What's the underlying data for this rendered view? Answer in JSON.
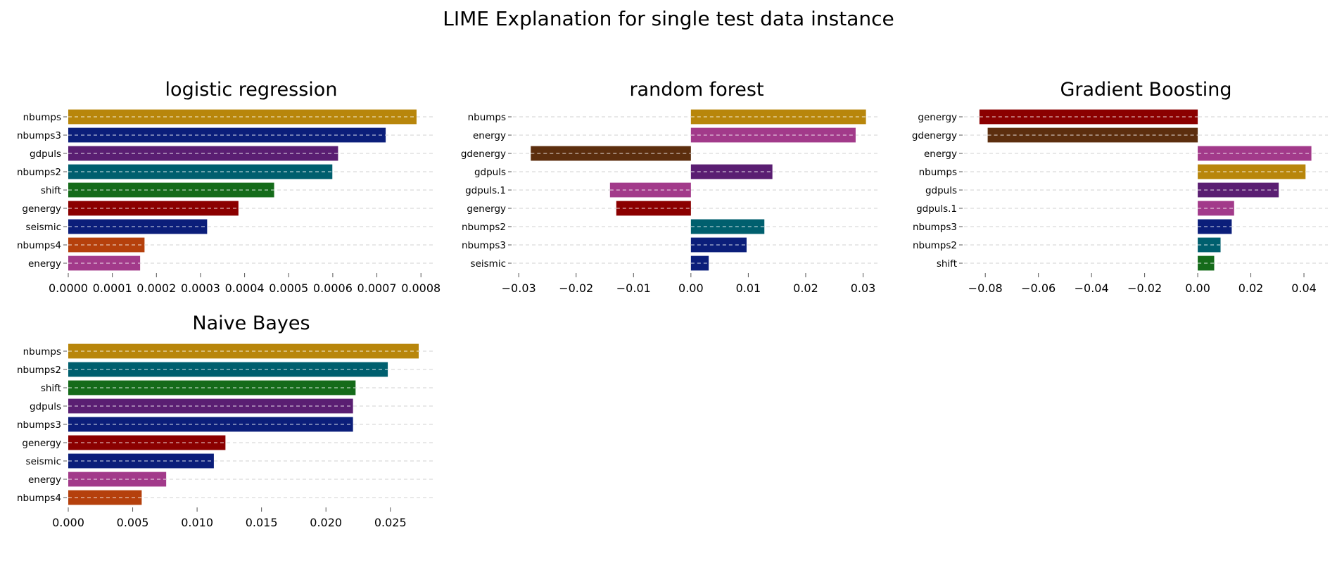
{
  "suptitle": "LIME Explanation for single test data instance",
  "chart_data": [
    {
      "type": "bar",
      "orientation": "horizontal",
      "title": "logistic regression",
      "categories": [
        "nbumps",
        "nbumps3",
        "gdpuls",
        "nbumps2",
        "shift",
        "genergy",
        "seismic",
        "nbumps4",
        "energy"
      ],
      "values": [
        0.00079,
        0.00072,
        0.000612,
        0.000599,
        0.000467,
        0.000386,
        0.000315,
        0.000173,
        0.000163
      ],
      "colors": [
        "#b8860b",
        "#0b1e7a",
        "#5a1e72",
        "#005f6e",
        "#156b1a",
        "#8b0000",
        "#0b1e7a",
        "#b5400c",
        "#a23a8a"
      ],
      "xlim": [
        0,
        0.00083
      ],
      "xticks": [
        0,
        0.0001,
        0.0002,
        0.0003,
        0.0004,
        0.0005,
        0.0006,
        0.0007,
        0.0008
      ],
      "xtick_labels": [
        "0.0000",
        "0.0001",
        "0.0002",
        "0.0003",
        "0.0004",
        "0.0005",
        "0.0006",
        "0.0007",
        "0.0008"
      ],
      "grid": "y-dashed"
    },
    {
      "type": "bar",
      "orientation": "horizontal",
      "title": "random forest",
      "categories": [
        "nbumps",
        "energy",
        "gdenergy",
        "gdpuls",
        "gdpuls.1",
        "genergy",
        "nbumps2",
        "nbumps3",
        "seismic"
      ],
      "values": [
        0.0305,
        0.0287,
        -0.0279,
        0.0142,
        -0.0141,
        -0.013,
        0.0128,
        0.0097,
        0.0031
      ],
      "colors": [
        "#b8860b",
        "#a23a8a",
        "#5c2e0e",
        "#5a1e72",
        "#a23a8a",
        "#8b0000",
        "#005f6e",
        "#0b1e7a",
        "#0b1e7a"
      ],
      "xlim": [
        -0.031,
        0.033
      ],
      "xticks": [
        -0.03,
        -0.02,
        -0.01,
        0,
        0.01,
        0.02,
        0.03
      ],
      "xtick_labels": [
        "−0.03",
        "−0.02",
        "−0.01",
        "0.00",
        "0.01",
        "0.02",
        "0.03"
      ],
      "grid": "y-dashed"
    },
    {
      "type": "bar",
      "orientation": "horizontal",
      "title": "Gradient Boosting",
      "categories": [
        "genergy",
        "gdenergy",
        "energy",
        "nbumps",
        "gdpuls",
        "gdpuls.1",
        "nbumps3",
        "nbumps2",
        "shift"
      ],
      "values": [
        -0.0822,
        -0.0791,
        0.0428,
        0.0406,
        0.0305,
        0.0137,
        0.0128,
        0.0086,
        0.0062
      ],
      "colors": [
        "#8b0000",
        "#5c2e0e",
        "#a23a8a",
        "#b8860b",
        "#5a1e72",
        "#a23a8a",
        "#0b1e7a",
        "#005f6e",
        "#156b1a"
      ],
      "xlim": [
        -0.088,
        0.049
      ],
      "xticks": [
        -0.08,
        -0.06,
        -0.04,
        -0.02,
        0,
        0.02,
        0.04
      ],
      "xtick_labels": [
        "−0.08",
        "−0.06",
        "−0.04",
        "−0.02",
        "0.00",
        "0.02",
        "0.04"
      ],
      "grid": "y-dashed"
    },
    {
      "type": "bar",
      "orientation": "horizontal",
      "title": "Naive Bayes",
      "categories": [
        "nbumps",
        "nbumps2",
        "shift",
        "gdpuls",
        "nbumps3",
        "genergy",
        "seismic",
        "energy",
        "nbumps4"
      ],
      "values": [
        0.0272,
        0.0248,
        0.0223,
        0.0221,
        0.0221,
        0.0122,
        0.0113,
        0.0076,
        0.0057
      ],
      "colors": [
        "#b8860b",
        "#005f6e",
        "#156b1a",
        "#5a1e72",
        "#0b1e7a",
        "#8b0000",
        "#0b1e7a",
        "#a23a8a",
        "#b5400c"
      ],
      "xlim": [
        0,
        0.0284
      ],
      "xticks": [
        0,
        0.005,
        0.01,
        0.015,
        0.02,
        0.025
      ],
      "xtick_labels": [
        "0.000",
        "0.005",
        "0.010",
        "0.015",
        "0.020",
        "0.025"
      ],
      "grid": "y-dashed"
    }
  ]
}
